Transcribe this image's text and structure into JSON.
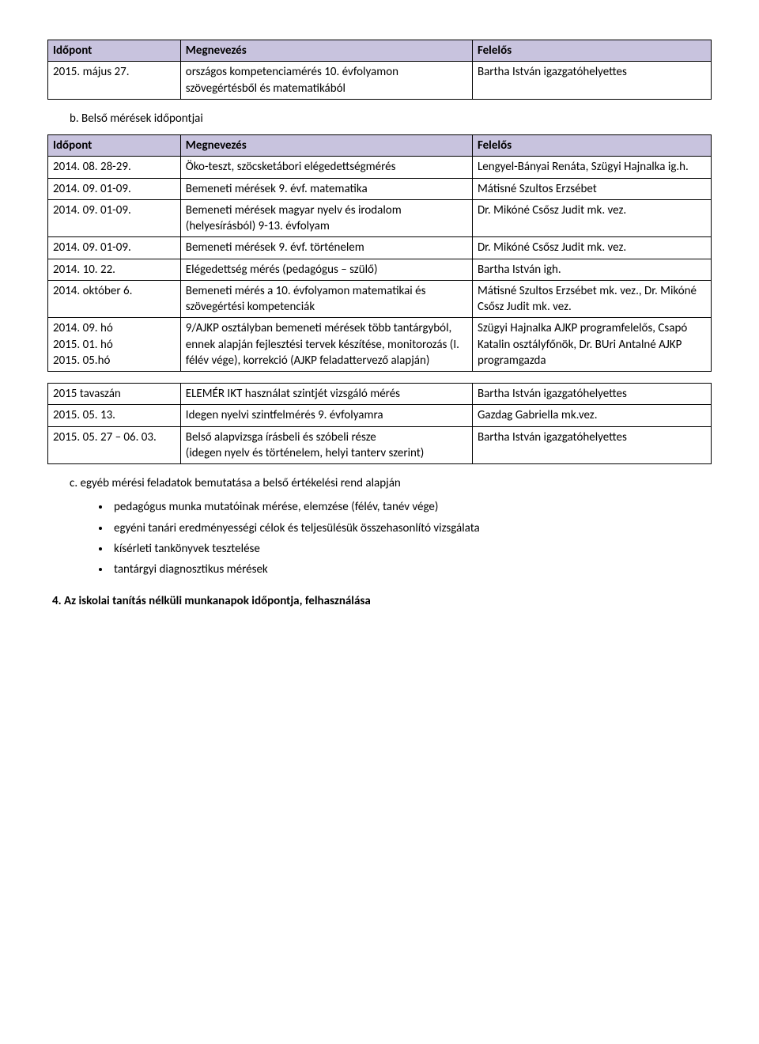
{
  "header_bg": "#c8c3de",
  "table1": {
    "headers": [
      "Időpont",
      "Megnevezés",
      "Felelős"
    ],
    "rows": [
      [
        "2015. május 27.",
        "országos kompetenciamérés 10. évfolyamon szövegértésből és matematikából",
        "Bartha István igazgatóhelyettes"
      ]
    ]
  },
  "section_b": "b.   Belső mérések időpontjai",
  "table2": {
    "headers": [
      "Időpont",
      "Megnevezés",
      "Felelős"
    ],
    "rows": [
      [
        "2014. 08. 28-29.",
        "Öko-teszt, szöcsketábori elégedettségmérés",
        "Lengyel-Bányai Renáta, Szügyi Hajnalka ig.h."
      ],
      [
        "2014. 09. 01-09.",
        "Bemeneti mérések 9. évf. matematika",
        "Mátisné Szultos Erzsébet"
      ],
      [
        "2014. 09. 01-09.",
        "Bemeneti mérések magyar nyelv és irodalom (helyesírásból) 9-13. évfolyam",
        "Dr. Mikóné Csősz Judit mk. vez."
      ],
      [
        "2014. 09. 01-09.",
        "Bemeneti mérések 9. évf. történelem",
        "Dr. Mikóné Csősz Judit mk. vez."
      ],
      [
        "2014. 10. 22.",
        "Elégedettség mérés (pedagógus – szülő)",
        "Bartha István igh."
      ],
      [
        "2014. október 6.",
        "Bemeneti mérés a 10. évfolyamon matematikai és szövegértési kompetenciák",
        "Mátisné Szultos Erzsébet mk. vez., Dr. Mikóné Csősz Judit mk. vez."
      ],
      [
        "2014. 09. hó\n2015. 01. hó\n2015. 05.hó",
        "9/AJKP osztályban bemeneti mérések több tantárgyból, ennek alapján fejlesztési tervek készítése, monitorozás (I. félév vége), korrekció (AJKP feladattervező alapján)",
        "Szügyi Hajnalka AJKP programfelelős, Csapó Katalin osztályfőnök, Dr. BUri Antalné AJKP programgazda"
      ]
    ]
  },
  "table3": {
    "rows": [
      [
        "2015 tavaszán",
        "ELEMÉR IKT használat szintjét vizsgáló mérés",
        "Bartha István igazgatóhelyettes"
      ],
      [
        "2015. 05. 13.",
        "Idegen nyelvi szintfelmérés 9. évfolyamra",
        "Gazdag Gabriella mk.vez."
      ],
      [
        "2015. 05. 27 – 06. 03.",
        "Belső alapvizsga írásbeli és szóbeli része\n(idegen nyelv és történelem, helyi tanterv szerint)",
        "Bartha István igazgatóhelyettes"
      ]
    ]
  },
  "section_c": "c.   egyéb mérési feladatok bemutatása a belső értékelési rend alapján",
  "bullets": [
    "pedagógus munka mutatóinak mérése, elemzése (félév, tanév vége)",
    "egyéni tanári eredményességi célok és teljesülésük összehasonlító vizsgálata",
    "kísérleti tankönyvek tesztelése",
    "tantárgyi diagnosztikus mérések"
  ],
  "heading4": "4.   Az iskolai tanítás nélküli munkanapok időpontja, felhasználása"
}
